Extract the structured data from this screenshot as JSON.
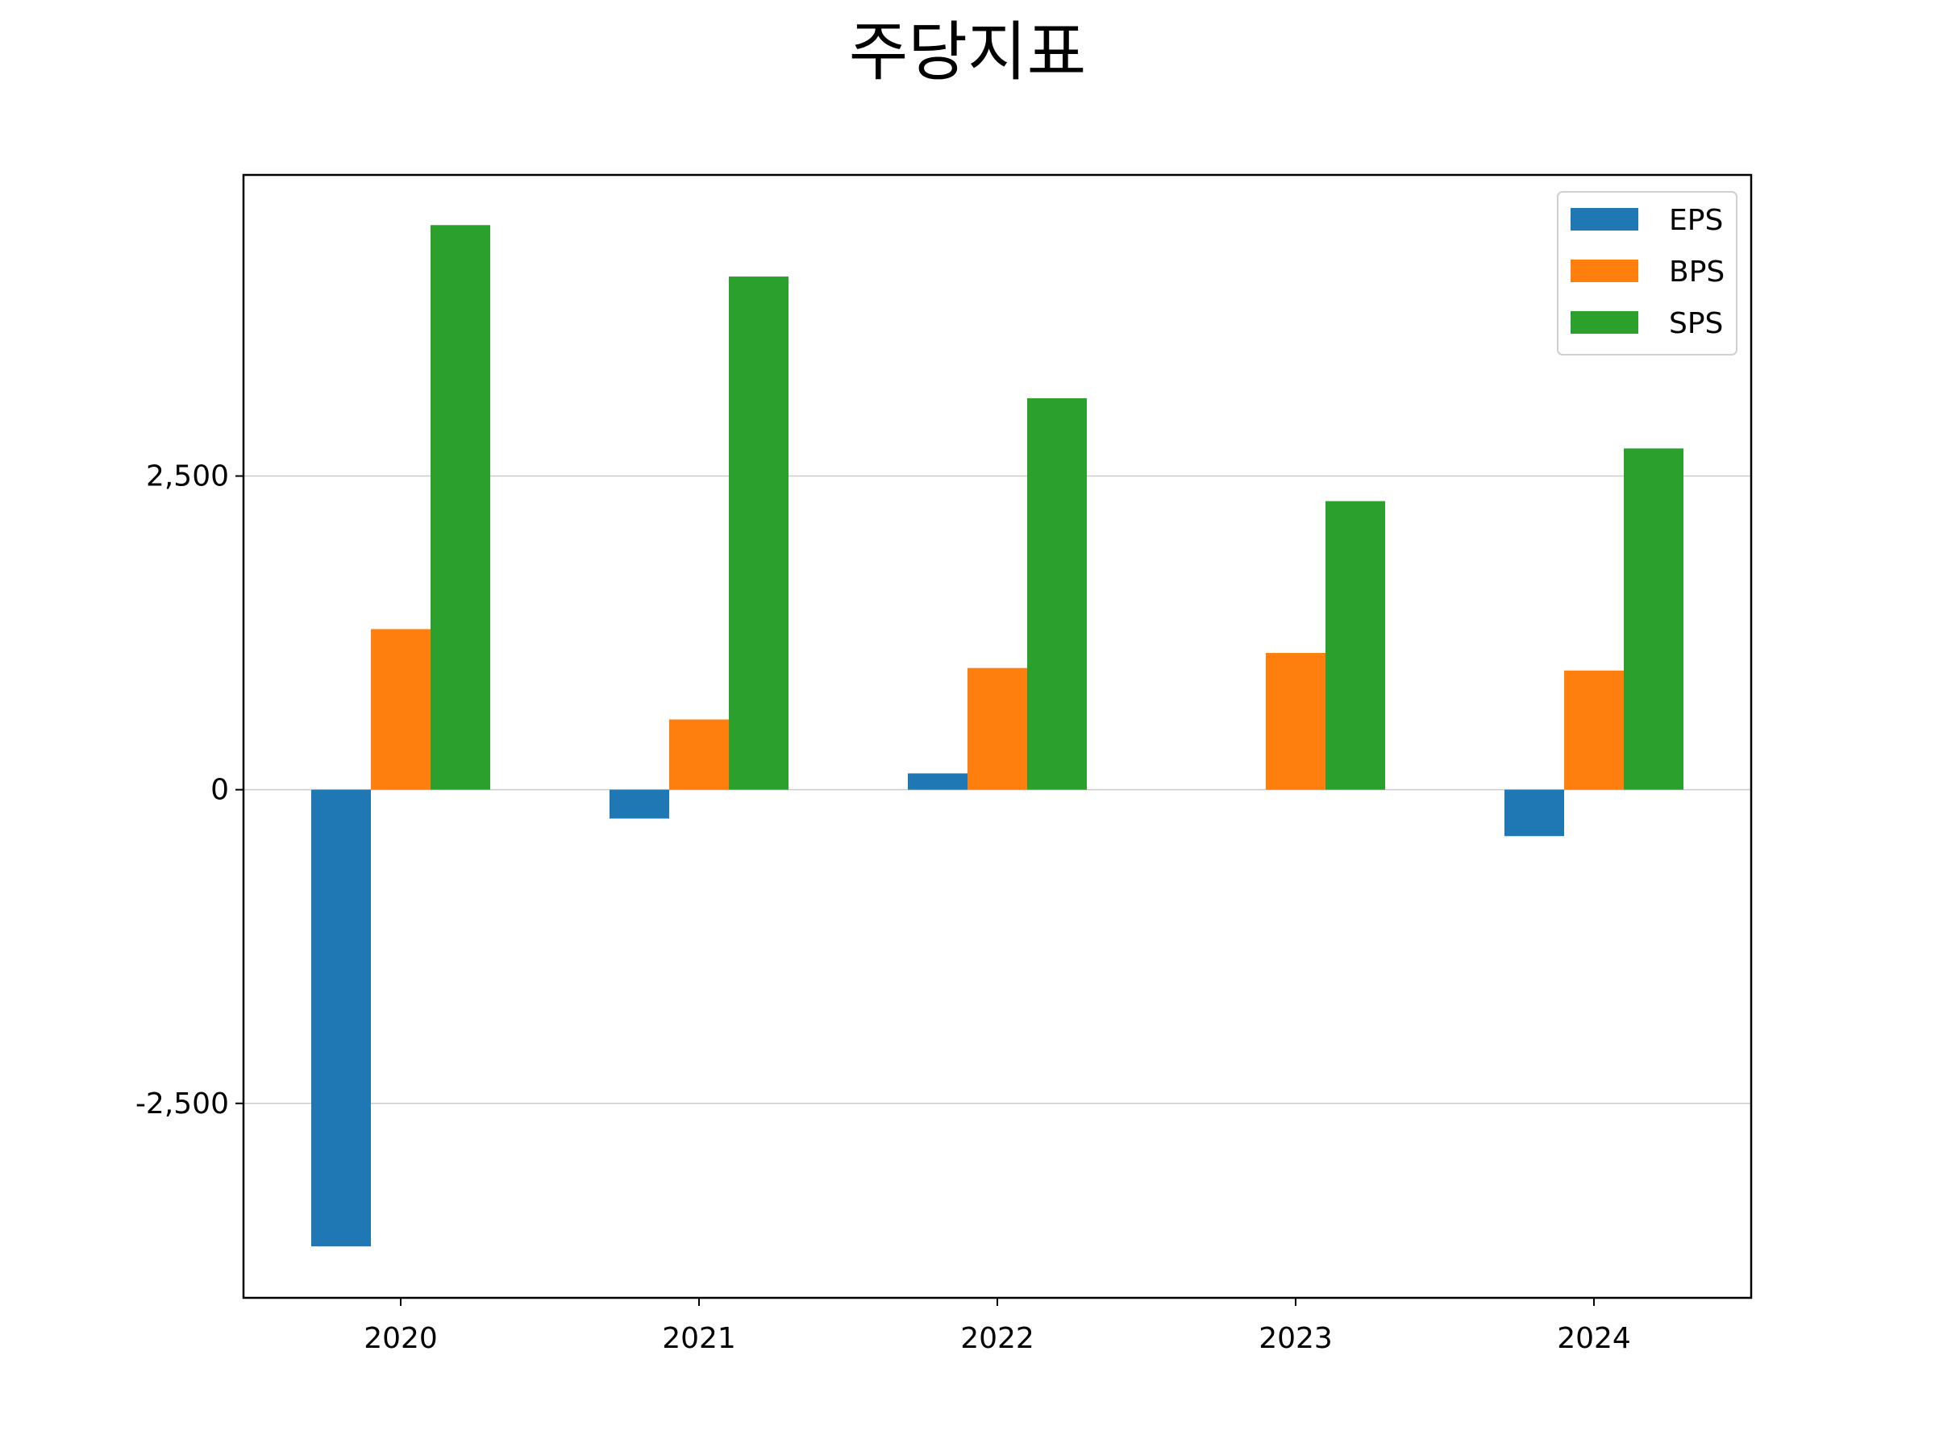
{
  "chart_data": {
    "type": "bar",
    "title": "주당지표",
    "xlabel": "",
    "ylabel": "",
    "categories": [
      "2020",
      "2021",
      "2022",
      "2023",
      "2024"
    ],
    "series": [
      {
        "name": "EPS",
        "color": "#1f77b4",
        "values": [
          -3640,
          -230,
          130,
          0,
          -370
        ]
      },
      {
        "name": "BPS",
        "color": "#ff7f0e",
        "values": [
          1280,
          560,
          970,
          1090,
          950
        ]
      },
      {
        "name": "SPS",
        "color": "#2ca02c",
        "values": [
          4500,
          4090,
          3120,
          2300,
          2720
        ]
      }
    ],
    "ylim": [
      -4050,
      4900
    ],
    "yticks": [
      -2500,
      0,
      2500
    ],
    "ytick_labels": [
      "-2,500",
      "0",
      "2,500"
    ],
    "grid": "y",
    "legend_position": "top-right"
  }
}
